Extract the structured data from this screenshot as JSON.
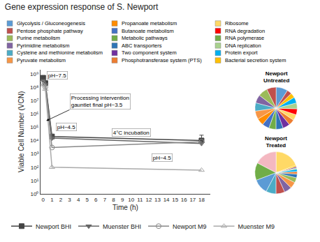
{
  "chart_data": [
    {
      "type": "line",
      "title": "Gene expression response of S. Newport",
      "xlabel": "Time (h)",
      "ylabel": "Viable Cell Number (VCN)",
      "x": [
        0,
        0.25,
        1,
        18
      ],
      "series": [
        {
          "name": "Newport BHI",
          "color": "#444444",
          "marker": "square",
          "values": [
            500000000.0,
            200000000.0,
            20000.0,
            10000.0
          ],
          "error_minus": [
            null,
            null,
            null,
            4000.0
          ],
          "error_plus": [
            null,
            null,
            null,
            15000.0
          ]
        },
        {
          "name": "Muenster BHI",
          "color": "#666666",
          "marker": "triangle-down",
          "values": [
            300000000.0,
            150000000.0,
            15000.0,
            6000.0
          ]
        },
        {
          "name": "Newport M9",
          "color": "#888888",
          "marker": "circle-open",
          "values": [
            200000000.0,
            100000000.0,
            3000.0,
            8000.0
          ]
        },
        {
          "name": "Muenster M9",
          "color": "#aaaaaa",
          "marker": "triangle-up-open",
          "values": [
            150000000.0,
            70000000.0,
            100.0,
            60.0
          ]
        }
      ],
      "log": "y",
      "xlim": [
        -0.3,
        19
      ],
      "xticks": [
        0,
        1,
        2,
        3,
        4,
        5,
        6,
        7,
        8,
        9,
        10,
        11,
        12,
        13,
        14,
        15,
        16,
        17,
        18
      ],
      "ylim": [
        1,
        2000000000.0
      ],
      "yticks": [
        {
          "value": 1,
          "label": "10⁰"
        },
        {
          "value": 10,
          "label": "10¹"
        },
        {
          "value": 100,
          "label": "10²"
        },
        {
          "value": 1000,
          "label": "10³"
        },
        {
          "value": 10000,
          "label": "10⁴"
        },
        {
          "value": 100000,
          "label": "10⁵"
        },
        {
          "value": 1000000,
          "label": "10⁶"
        },
        {
          "value": 10000000,
          "label": "10⁷"
        },
        {
          "value": 100000000,
          "label": "10⁸"
        },
        {
          "value": 1000000000,
          "label": "10⁹"
        }
      ],
      "grid": false,
      "legend": "bottom",
      "annotations": [
        {
          "text": "pH~7.5",
          "x": 0.1,
          "y": 350000000.0
        },
        {
          "text": "pH~4.5",
          "x": 1.1,
          "y": 50000.0
        },
        {
          "text": "pH~4.5",
          "x": 12,
          "y": 250.0
        },
        {
          "text": "4°C incubation",
          "x": 7.5,
          "y": 20000.0
        },
        {
          "text": "Processing intervention\ngauntlet final pH~3.5",
          "x": 0.35,
          "y": 300000.0,
          "text_x": 3.0,
          "text_y": 2000000.0
        }
      ]
    },
    {
      "type": "legend",
      "series": [
        {
          "name": "Glycolysis / Gluconeogenesis",
          "color": "#5b9bd5"
        },
        {
          "name": "Pentose phosphate pathway",
          "color": "#c0504d"
        },
        {
          "name": "Purine metabolism",
          "color": "#9bbb59"
        },
        {
          "name": "Pyrimidine metabolism",
          "color": "#8064a2"
        },
        {
          "name": "Cysteine and methionine metabolism",
          "color": "#4bacc6"
        },
        {
          "name": "Pyruvate metabolism",
          "color": "#f79646"
        },
        {
          "name": "Propanoate metabolism",
          "color": "#ff8c00"
        },
        {
          "name": "Butanoate metabolism",
          "color": "#4472c4"
        },
        {
          "name": "Metabolic pathways",
          "color": "#70ad47"
        },
        {
          "name": "ABC transporters",
          "color": "#2e75b6"
        },
        {
          "name": "Two component system",
          "color": "#7030a0"
        },
        {
          "name": "Phosphotransferase system (PTS)",
          "color": "#ed7d31"
        },
        {
          "name": "Ribosome",
          "color": "#ffd966"
        },
        {
          "name": "RNA degradation",
          "color": "#ff0000"
        },
        {
          "name": "RNA polymerase",
          "color": "#70ad47"
        },
        {
          "name": "DNA replication",
          "color": "#a9d18e"
        },
        {
          "name": "Protein export",
          "color": "#00b0f0"
        },
        {
          "name": "Bacterial secretion system",
          "color": "#ffc000"
        }
      ]
    },
    {
      "type": "pie",
      "title": "Newport\nUntreated",
      "values": [
        10,
        8,
        8,
        7,
        7,
        7,
        6,
        6,
        6,
        6,
        6,
        5,
        5,
        5,
        5,
        5,
        4,
        4
      ],
      "colors": [
        "#5b9bd5",
        "#c0504d",
        "#9bbb59",
        "#8064a2",
        "#4bacc6",
        "#f79646",
        "#ff8c00",
        "#4472c4",
        "#70ad47",
        "#2e75b6",
        "#7030a0",
        "#ed7d31",
        "#ffd966",
        "#ff0000",
        "#a9d18e",
        "#00b0f0",
        "#ffc000",
        "#c0504d"
      ]
    },
    {
      "type": "pie",
      "title": "Newport\nTreated",
      "values": [
        20,
        18,
        14,
        12,
        8,
        7,
        6,
        5,
        4,
        3,
        2,
        2,
        1,
        1,
        1
      ],
      "colors": [
        "#ffd966",
        "#f4b8c1",
        "#70ad47",
        "#5b9bd5",
        "#4bacc6",
        "#c0504d",
        "#8064a2",
        "#f79646",
        "#9bbb59",
        "#2e75b6",
        "#ed7d31",
        "#00b0f0",
        "#a9d18e",
        "#7030a0",
        "#ffc000"
      ]
    }
  ]
}
